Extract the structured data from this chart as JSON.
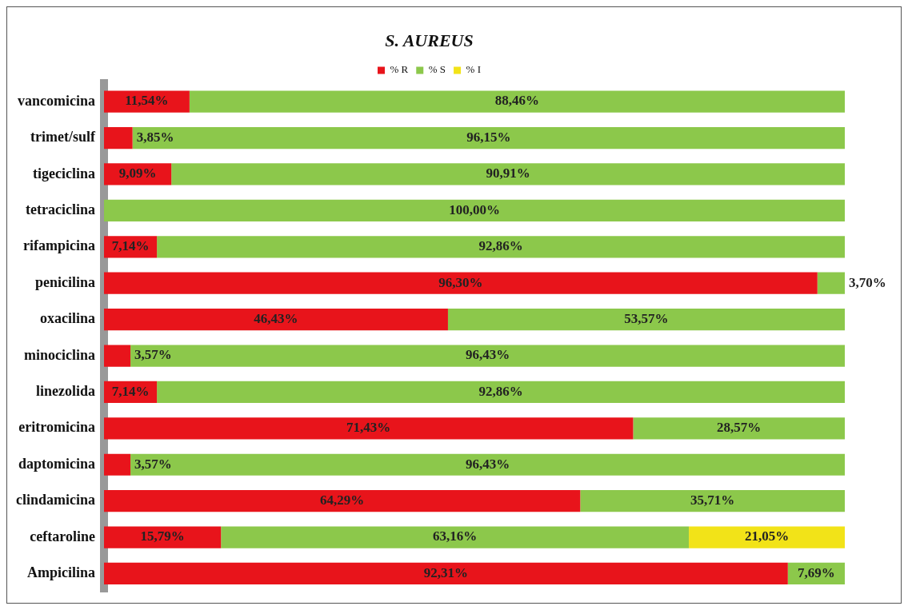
{
  "chart_data": {
    "type": "bar",
    "orientation": "horizontal",
    "stacked": true,
    "title": "S. AUREUS",
    "legend": "top",
    "tick_labels": "y",
    "categories": [
      "vancomicina",
      "trimet/sulf",
      "tigeciclina",
      "tetraciclina",
      "rifampicina",
      "penicilina",
      "oxacilina",
      "minociclina",
      "linezolida",
      "eritromicina",
      "daptomicina",
      "clindamicina",
      "ceftaroline",
      "Ampicilina"
    ],
    "series": [
      {
        "name": "% R",
        "color": "#e8141b",
        "values": [
          11.54,
          3.85,
          9.09,
          null,
          7.14,
          96.3,
          46.43,
          3.57,
          7.14,
          71.43,
          3.57,
          64.29,
          15.79,
          92.31
        ],
        "value_labels": [
          "11,54%",
          "3,85%",
          "9,09%",
          null,
          "7,14%",
          "96,30%",
          "46,43%",
          "3,57%",
          "7,14%",
          "71,43%",
          "3,57%",
          "64,29%",
          "15,79%",
          "92,31%"
        ]
      },
      {
        "name": "% S",
        "color": "#8cc84b",
        "values": [
          88.46,
          96.15,
          90.91,
          100,
          92.86,
          3.7,
          53.57,
          96.43,
          92.86,
          28.57,
          96.43,
          35.71,
          63.16,
          7.69
        ],
        "value_labels": [
          "88,46%",
          "96,15%",
          "90,91%",
          "100,00%",
          "92,86%",
          "3,70%",
          "53,57%",
          "96,43%",
          "92,86%",
          "28,57%",
          "96,43%",
          "35,71%",
          "63,16%",
          "7,69%"
        ]
      },
      {
        "name": "% I",
        "color": "#f2e318",
        "values": [
          null,
          null,
          null,
          null,
          null,
          null,
          null,
          null,
          null,
          null,
          null,
          null,
          21.05,
          null
        ],
        "value_labels": [
          null,
          null,
          null,
          null,
          null,
          null,
          null,
          null,
          null,
          null,
          null,
          null,
          "21,05%",
          null
        ]
      }
    ]
  }
}
